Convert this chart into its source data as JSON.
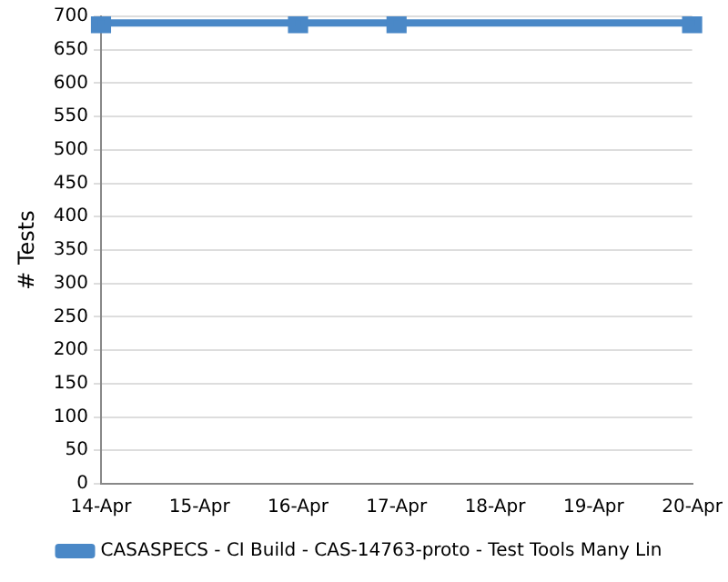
{
  "chart_data": {
    "type": "line",
    "ylabel": "# Tests",
    "categories": [
      "14-Apr",
      "15-Apr",
      "16-Apr",
      "17-Apr",
      "18-Apr",
      "19-Apr",
      "20-Apr"
    ],
    "series": [
      {
        "name": "CASASPECS - CI Build - CAS-14763-proto - Test Tools Many Lin",
        "color": "#4a88c7",
        "values": [
          690,
          null,
          690,
          690,
          null,
          null,
          690
        ]
      }
    ],
    "ylim": [
      0,
      700
    ],
    "yticks": [
      0,
      50,
      100,
      150,
      200,
      250,
      300,
      350,
      400,
      450,
      500,
      550,
      600,
      650,
      700
    ],
    "grid": "y",
    "legend": "bottom",
    "marker": "square",
    "line_style": "solid"
  }
}
